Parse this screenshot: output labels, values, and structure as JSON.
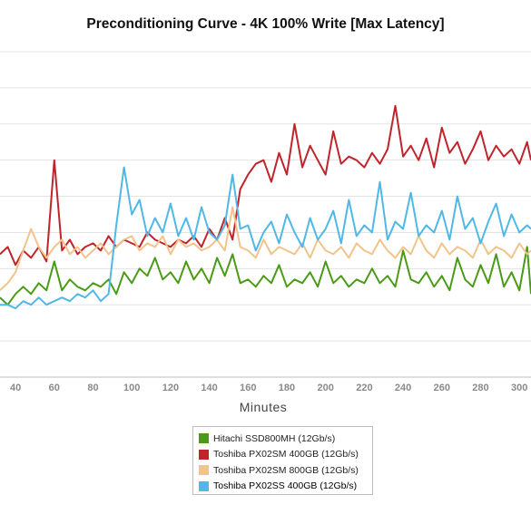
{
  "chart_data": {
    "type": "line",
    "title": "Preconditioning Curve - 4K 100% Write [Max Latency]",
    "xlabel": "Minutes",
    "ylabel": "",
    "xlim": [
      32,
      306
    ],
    "ylim": [
      0,
      9
    ],
    "x_ticks": [
      40,
      60,
      80,
      100,
      120,
      140,
      160,
      180,
      200,
      220,
      240,
      260,
      280,
      300
    ],
    "grid": true,
    "legend_position": "bottom",
    "series": [
      {
        "name": "Hitachi SSD800MH (12Gb/s)",
        "color": "#4a9a16",
        "x": [
          32,
          36,
          40,
          44,
          48,
          52,
          56,
          60,
          64,
          68,
          72,
          76,
          80,
          84,
          88,
          92,
          96,
          100,
          104,
          108,
          112,
          116,
          120,
          124,
          128,
          132,
          136,
          140,
          144,
          148,
          152,
          156,
          160,
          164,
          168,
          172,
          176,
          180,
          184,
          188,
          192,
          196,
          200,
          204,
          208,
          212,
          216,
          220,
          224,
          228,
          232,
          236,
          240,
          244,
          248,
          252,
          256,
          260,
          264,
          268,
          272,
          276,
          280,
          284,
          288,
          292,
          296,
          300,
          304,
          306
        ],
        "values": [
          2.2,
          2.0,
          2.3,
          2.5,
          2.3,
          2.6,
          2.4,
          3.2,
          2.4,
          2.7,
          2.5,
          2.4,
          2.6,
          2.5,
          2.7,
          2.3,
          2.9,
          2.6,
          3.0,
          2.8,
          3.3,
          2.7,
          2.9,
          2.6,
          3.2,
          2.7,
          3.0,
          2.6,
          3.3,
          2.8,
          3.4,
          2.6,
          2.7,
          2.5,
          2.8,
          2.6,
          3.1,
          2.5,
          2.7,
          2.6,
          2.9,
          2.5,
          3.2,
          2.6,
          2.8,
          2.5,
          2.7,
          2.6,
          3.0,
          2.6,
          2.8,
          2.5,
          3.5,
          2.7,
          2.6,
          2.9,
          2.5,
          2.8,
          2.4,
          3.3,
          2.7,
          2.5,
          3.1,
          2.6,
          3.4,
          2.5,
          2.9,
          2.4,
          3.6,
          2.3
        ]
      },
      {
        "name": "Toshiba PX02SM 400GB (12Gb/s)",
        "color": "#c0242b",
        "x": [
          32,
          36,
          40,
          44,
          48,
          52,
          56,
          60,
          64,
          68,
          72,
          76,
          80,
          84,
          88,
          92,
          96,
          100,
          104,
          108,
          112,
          116,
          120,
          124,
          128,
          132,
          136,
          140,
          144,
          148,
          152,
          156,
          160,
          164,
          168,
          172,
          176,
          180,
          184,
          188,
          192,
          196,
          200,
          204,
          208,
          212,
          216,
          220,
          224,
          228,
          232,
          236,
          240,
          244,
          248,
          252,
          256,
          260,
          264,
          268,
          272,
          276,
          280,
          284,
          288,
          292,
          296,
          300,
          304,
          306
        ],
        "values": [
          3.4,
          3.6,
          3.1,
          3.5,
          3.3,
          3.6,
          3.2,
          6.0,
          3.5,
          3.8,
          3.4,
          3.6,
          3.7,
          3.5,
          3.9,
          3.6,
          3.8,
          3.7,
          3.6,
          4.0,
          3.8,
          3.7,
          3.6,
          3.8,
          3.7,
          3.9,
          3.6,
          4.1,
          3.8,
          4.4,
          3.8,
          5.2,
          5.6,
          5.9,
          6.0,
          5.4,
          6.2,
          5.6,
          7.0,
          5.8,
          6.4,
          6.0,
          5.6,
          6.8,
          5.9,
          6.1,
          6.0,
          5.8,
          6.2,
          5.9,
          6.3,
          7.5,
          6.1,
          6.4,
          6.0,
          6.6,
          5.8,
          6.9,
          6.2,
          6.5,
          5.9,
          6.3,
          6.8,
          6.0,
          6.4,
          6.1,
          6.3,
          5.9,
          6.5,
          6.0
        ]
      },
      {
        "name": "Toshiba PX02SM 800GB (12Gb/s)",
        "color": "#f0c48a",
        "x": [
          32,
          36,
          40,
          44,
          48,
          52,
          56,
          60,
          64,
          68,
          72,
          76,
          80,
          84,
          88,
          92,
          96,
          100,
          104,
          108,
          112,
          116,
          120,
          124,
          128,
          132,
          136,
          140,
          144,
          148,
          152,
          156,
          160,
          164,
          168,
          172,
          176,
          180,
          184,
          188,
          192,
          196,
          200,
          204,
          208,
          212,
          216,
          220,
          224,
          228,
          232,
          236,
          240,
          244,
          248,
          252,
          256,
          260,
          264,
          268,
          272,
          276,
          280,
          284,
          288,
          292,
          296,
          300,
          304,
          306
        ],
        "values": [
          2.4,
          2.6,
          2.9,
          3.5,
          4.1,
          3.6,
          3.3,
          3.6,
          3.8,
          3.4,
          3.6,
          3.3,
          3.5,
          3.7,
          3.4,
          3.6,
          3.8,
          3.9,
          3.5,
          3.7,
          3.6,
          3.9,
          3.4,
          3.8,
          3.6,
          3.7,
          3.5,
          3.6,
          3.8,
          3.5,
          4.7,
          3.6,
          3.5,
          3.3,
          3.8,
          3.4,
          3.6,
          3.5,
          3.4,
          3.7,
          3.3,
          3.8,
          3.5,
          3.4,
          3.6,
          3.3,
          3.7,
          3.5,
          3.4,
          3.8,
          3.5,
          3.3,
          3.6,
          3.4,
          3.9,
          3.5,
          3.3,
          3.7,
          3.4,
          3.6,
          3.5,
          3.3,
          3.8,
          3.4,
          3.6,
          3.5,
          3.3,
          3.7,
          3.4,
          3.5
        ]
      },
      {
        "name": "Toshiba PX02SS 400GB (12Gb/s)",
        "color": "#4fb8e6",
        "x": [
          32,
          36,
          40,
          44,
          48,
          52,
          56,
          60,
          64,
          68,
          72,
          76,
          80,
          84,
          88,
          92,
          96,
          100,
          104,
          108,
          112,
          116,
          120,
          124,
          128,
          132,
          136,
          140,
          144,
          148,
          152,
          156,
          160,
          164,
          168,
          172,
          176,
          180,
          184,
          188,
          192,
          196,
          200,
          204,
          208,
          212,
          216,
          220,
          224,
          228,
          232,
          236,
          240,
          244,
          248,
          252,
          256,
          260,
          264,
          268,
          272,
          276,
          280,
          284,
          288,
          292,
          296,
          300,
          304,
          306
        ],
        "values": [
          2.0,
          2.0,
          1.9,
          2.1,
          2.0,
          2.2,
          2.0,
          2.1,
          2.2,
          2.1,
          2.3,
          2.2,
          2.4,
          2.1,
          2.3,
          4.2,
          5.8,
          4.5,
          4.9,
          3.9,
          4.4,
          4.0,
          4.8,
          3.9,
          4.4,
          3.8,
          4.7,
          4.0,
          3.8,
          4.2,
          5.6,
          4.1,
          4.2,
          3.5,
          4.0,
          4.3,
          3.7,
          4.5,
          4.0,
          3.6,
          4.4,
          3.8,
          4.1,
          4.6,
          3.7,
          4.9,
          3.9,
          4.2,
          4.0,
          5.4,
          3.8,
          4.3,
          4.1,
          5.1,
          3.9,
          4.2,
          4.0,
          4.6,
          3.8,
          5.0,
          4.1,
          4.4,
          3.7,
          4.3,
          4.8,
          3.9,
          4.5,
          4.0,
          4.2,
          4.1
        ]
      }
    ]
  }
}
